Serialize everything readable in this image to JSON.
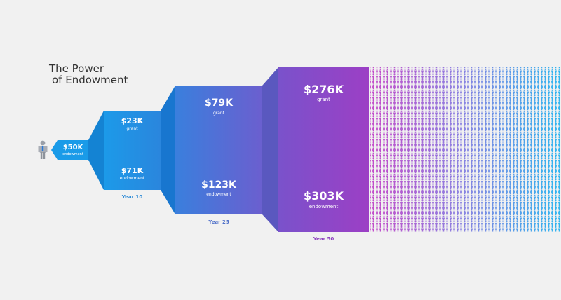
{
  "title": {
    "line1": "The Power",
    "line2": "of Endowment"
  },
  "initial": {
    "value": "$50K",
    "caption": "endowment"
  },
  "stages": [
    {
      "grant_value": "$23K",
      "grant_caption": "grant",
      "endowment_value": "$71K",
      "endowment_caption": "endowment",
      "year": "Year 10"
    },
    {
      "grant_value": "$79K",
      "grant_caption": "grant",
      "endowment_value": "$123K",
      "endowment_caption": "endowment",
      "year": "Year 25"
    },
    {
      "grant_value": "$276K",
      "grant_caption": "grant",
      "endowment_value": "$303K",
      "endowment_caption": "endowment",
      "year": "Year 50"
    }
  ],
  "colors": {
    "background": "#f1f1f1",
    "blue": "#1f97e8",
    "purple": "#9b3fc6",
    "year10": "#2f8bd6",
    "year25": "#4e6fc9",
    "year50": "#8e44bf"
  },
  "icons": {
    "person": "person-icon",
    "crowd": "people-crowd-icon"
  }
}
